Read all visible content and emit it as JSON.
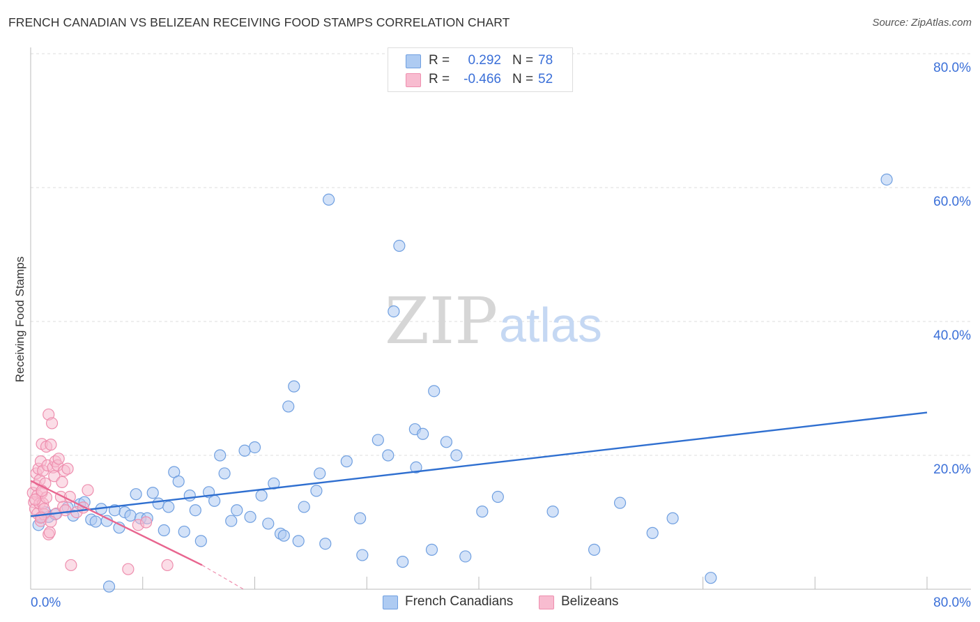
{
  "title": "FRENCH CANADIAN VS BELIZEAN RECEIVING FOOD STAMPS CORRELATION CHART",
  "source": "Source: ZipAtlas.com",
  "watermark": {
    "zip": "ZIP",
    "atlas": "atlas"
  },
  "legend_top": [
    {
      "r_label": "R =",
      "r_value": "0.292",
      "n_label": "N =",
      "n_value": "78"
    },
    {
      "r_label": "R =",
      "r_value": "-0.466",
      "n_label": "N =",
      "n_value": "52"
    }
  ],
  "legend_bottom": [
    "French Canadians",
    "Belizeans"
  ],
  "colors": {
    "blue_fill": "#aecbf2",
    "blue_stroke": "#6f9fe0",
    "blue_line": "#2f6fd0",
    "pink_fill": "#f8bcd0",
    "pink_stroke": "#ee8eae",
    "pink_line": "#e8658f",
    "tick_text": "#3a6fd8",
    "grid": "#dddddd"
  },
  "chart_data": {
    "type": "scatter",
    "xlabel": "",
    "ylabel": "Receiving Food Stamps",
    "xlim": [
      0,
      80
    ],
    "ylim": [
      0,
      80
    ],
    "x_tick_labels": [
      "0.0%",
      "80.0%"
    ],
    "y_ticks": [
      20,
      40,
      60,
      80
    ],
    "y_tick_labels": [
      "20.0%",
      "40.0%",
      "60.0%",
      "80.0%"
    ],
    "grid": true,
    "series": [
      {
        "name": "French Canadians",
        "r": 0.292,
        "n": 78,
        "trend": {
          "x0": 0,
          "y0": 10.9,
          "x1": 80,
          "y1": 26.4
        },
        "points": [
          [
            0.7,
            9.6
          ],
          [
            1.0,
            10.8
          ],
          [
            1.3,
            11.5
          ],
          [
            1.6,
            10.8
          ],
          [
            2.2,
            11.2
          ],
          [
            3.3,
            12.2
          ],
          [
            3.8,
            11.0
          ],
          [
            4.4,
            12.7
          ],
          [
            4.8,
            13.0
          ],
          [
            5.4,
            10.4
          ],
          [
            5.8,
            10.1
          ],
          [
            6.3,
            12.0
          ],
          [
            6.8,
            10.2
          ],
          [
            7.5,
            11.8
          ],
          [
            7.9,
            9.2
          ],
          [
            8.4,
            11.5
          ],
          [
            8.9,
            11.0
          ],
          [
            9.4,
            14.2
          ],
          [
            9.8,
            10.6
          ],
          [
            10.4,
            10.6
          ],
          [
            10.9,
            14.4
          ],
          [
            11.4,
            12.8
          ],
          [
            11.9,
            8.8
          ],
          [
            12.3,
            12.3
          ],
          [
            12.8,
            17.5
          ],
          [
            13.2,
            16.1
          ],
          [
            13.7,
            8.6
          ],
          [
            14.2,
            14.0
          ],
          [
            14.7,
            11.8
          ],
          [
            15.2,
            7.2
          ],
          [
            15.9,
            14.5
          ],
          [
            16.4,
            13.2
          ],
          [
            16.9,
            20.0
          ],
          [
            17.3,
            17.3
          ],
          [
            17.9,
            10.2
          ],
          [
            18.4,
            11.8
          ],
          [
            19.1,
            20.7
          ],
          [
            19.6,
            10.8
          ],
          [
            20.0,
            21.2
          ],
          [
            20.6,
            14.0
          ],
          [
            21.2,
            9.8
          ],
          [
            21.7,
            15.8
          ],
          [
            22.3,
            8.3
          ],
          [
            22.6,
            8.0
          ],
          [
            23.0,
            27.3
          ],
          [
            23.5,
            30.3
          ],
          [
            23.9,
            7.2
          ],
          [
            24.4,
            12.3
          ],
          [
            25.5,
            14.7
          ],
          [
            25.8,
            17.3
          ],
          [
            26.3,
            6.8
          ],
          [
            26.6,
            58.2
          ],
          [
            28.2,
            19.1
          ],
          [
            29.4,
            10.6
          ],
          [
            29.6,
            5.1
          ],
          [
            31.0,
            22.3
          ],
          [
            31.9,
            20.0
          ],
          [
            32.4,
            41.5
          ],
          [
            32.9,
            51.3
          ],
          [
            33.2,
            4.1
          ],
          [
            34.3,
            23.9
          ],
          [
            34.4,
            18.2
          ],
          [
            35.0,
            23.2
          ],
          [
            35.8,
            5.9
          ],
          [
            36.0,
            29.6
          ],
          [
            37.1,
            22.0
          ],
          [
            38.0,
            20.0
          ],
          [
            38.8,
            4.9
          ],
          [
            40.3,
            11.6
          ],
          [
            41.7,
            13.8
          ],
          [
            46.6,
            11.6
          ],
          [
            50.3,
            5.9
          ],
          [
            52.6,
            12.9
          ],
          [
            55.5,
            8.4
          ],
          [
            57.3,
            10.6
          ],
          [
            60.7,
            1.7
          ],
          [
            76.4,
            61.2
          ],
          [
            7.0,
            0.4
          ]
        ]
      },
      {
        "name": "Belizeans",
        "r": -0.466,
        "n": 52,
        "trend": {
          "x0": 0,
          "y0": 16.2,
          "x1": 15.3,
          "y1": 3.6,
          "dash_x1": 19.0,
          "dash_y1": 0.0
        },
        "points": [
          [
            0.2,
            14.4
          ],
          [
            0.3,
            13.0
          ],
          [
            0.4,
            12.0
          ],
          [
            0.5,
            15.5
          ],
          [
            0.5,
            17.3
          ],
          [
            0.6,
            14.0
          ],
          [
            0.6,
            11.3
          ],
          [
            0.7,
            18.0
          ],
          [
            0.8,
            12.8
          ],
          [
            0.8,
            16.3
          ],
          [
            0.9,
            10.2
          ],
          [
            0.9,
            19.1
          ],
          [
            1.0,
            21.7
          ],
          [
            1.0,
            14.4
          ],
          [
            1.1,
            12.8
          ],
          [
            1.1,
            17.7
          ],
          [
            1.2,
            11.2
          ],
          [
            1.3,
            15.8
          ],
          [
            1.4,
            13.7
          ],
          [
            1.4,
            21.3
          ],
          [
            1.5,
            18.5
          ],
          [
            1.6,
            26.1
          ],
          [
            1.6,
            8.2
          ],
          [
            1.7,
            8.5
          ],
          [
            1.8,
            21.6
          ],
          [
            1.9,
            24.8
          ],
          [
            2.0,
            18.2
          ],
          [
            2.1,
            16.9
          ],
          [
            2.2,
            19.1
          ],
          [
            2.3,
            11.3
          ],
          [
            2.4,
            18.5
          ],
          [
            2.5,
            19.5
          ],
          [
            2.7,
            13.8
          ],
          [
            2.8,
            16.0
          ],
          [
            3.0,
            17.7
          ],
          [
            3.3,
            18.0
          ],
          [
            3.5,
            13.8
          ],
          [
            3.6,
            3.6
          ],
          [
            4.1,
            11.5
          ],
          [
            4.7,
            12.2
          ],
          [
            5.1,
            14.8
          ],
          [
            8.7,
            3.0
          ],
          [
            9.6,
            9.6
          ],
          [
            10.3,
            10.0
          ],
          [
            12.2,
            3.6
          ],
          [
            1.2,
            12.0
          ],
          [
            0.9,
            10.7
          ],
          [
            1.8,
            10.1
          ],
          [
            0.4,
            13.4
          ],
          [
            2.9,
            12.3
          ],
          [
            1.0,
            14.7
          ],
          [
            3.1,
            11.8
          ]
        ]
      }
    ]
  }
}
